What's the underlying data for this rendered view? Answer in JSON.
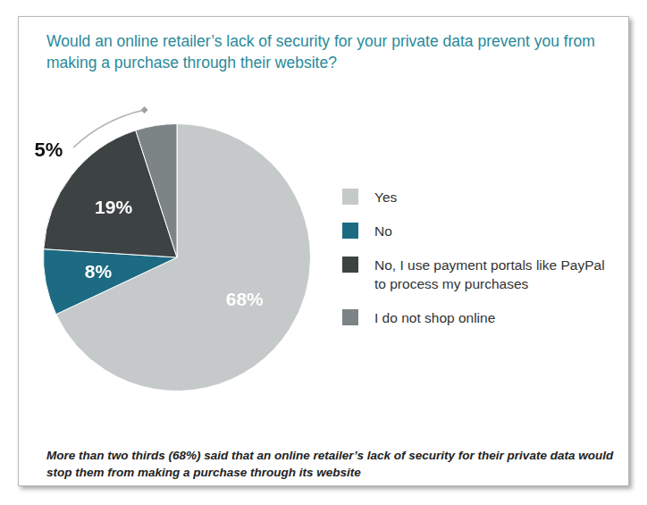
{
  "chart_data": {
    "type": "pie",
    "title": "Would an online retailer’s lack of security for your private data prevent you from making a purchase through their website?",
    "categories": [
      "Yes",
      "No",
      "No, I use payment portals like PayPal to process my purchases",
      "I do not shop online"
    ],
    "values": [
      68,
      8,
      19,
      5
    ],
    "value_labels": [
      "68%",
      "8%",
      "19%",
      "5%"
    ],
    "colors": [
      "#c5c9c9",
      "#1d6b82",
      "#3d4243",
      "#7c8485"
    ],
    "legend": "right",
    "data_labels": true,
    "caption": "More than two thirds (68%) said that an online retailer’s lack of security for their private data would stop them from making a purchase through its website"
  }
}
